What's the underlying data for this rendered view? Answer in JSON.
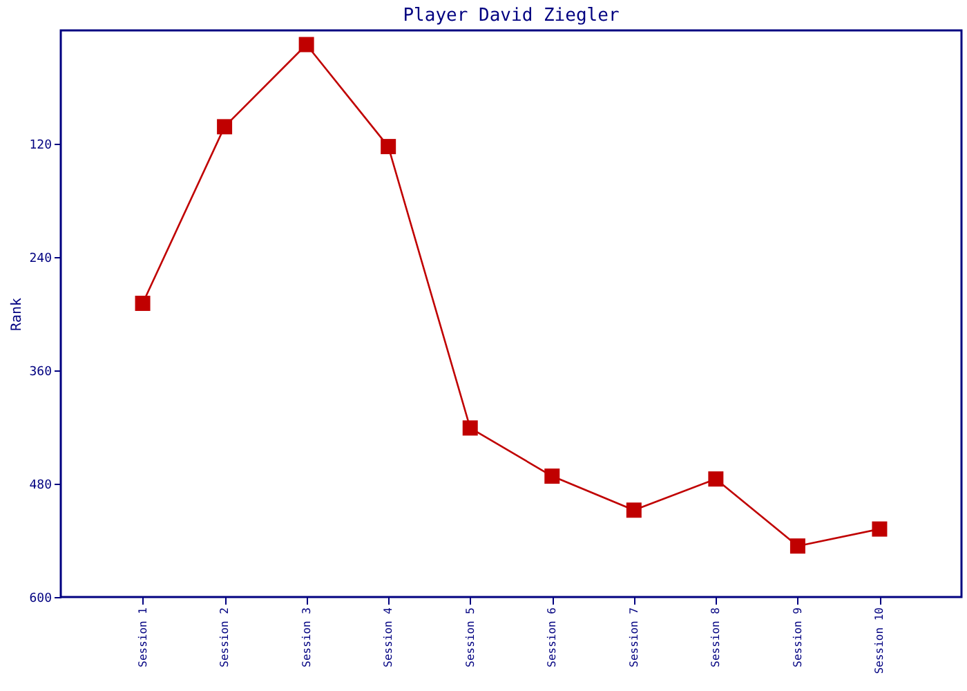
{
  "chart_data": {
    "type": "line",
    "title": "Player David Ziegler",
    "ylabel": "Rank",
    "categories": [
      "Session 1",
      "Session 2",
      "Session 3",
      "Session 4",
      "Session 5",
      "Session 6",
      "Session 7",
      "Session 8",
      "Session 9",
      "Session 10"
    ],
    "series": [
      {
        "color": "#c00000",
        "values": [
          289,
          102,
          15,
          123,
          421,
          472,
          508,
          475,
          546,
          528
        ]
      }
    ],
    "ylim": [
      600,
      0
    ],
    "yticks": [
      120,
      240,
      360,
      480,
      600
    ],
    "marker": "square",
    "grid": false,
    "legend": false
  }
}
